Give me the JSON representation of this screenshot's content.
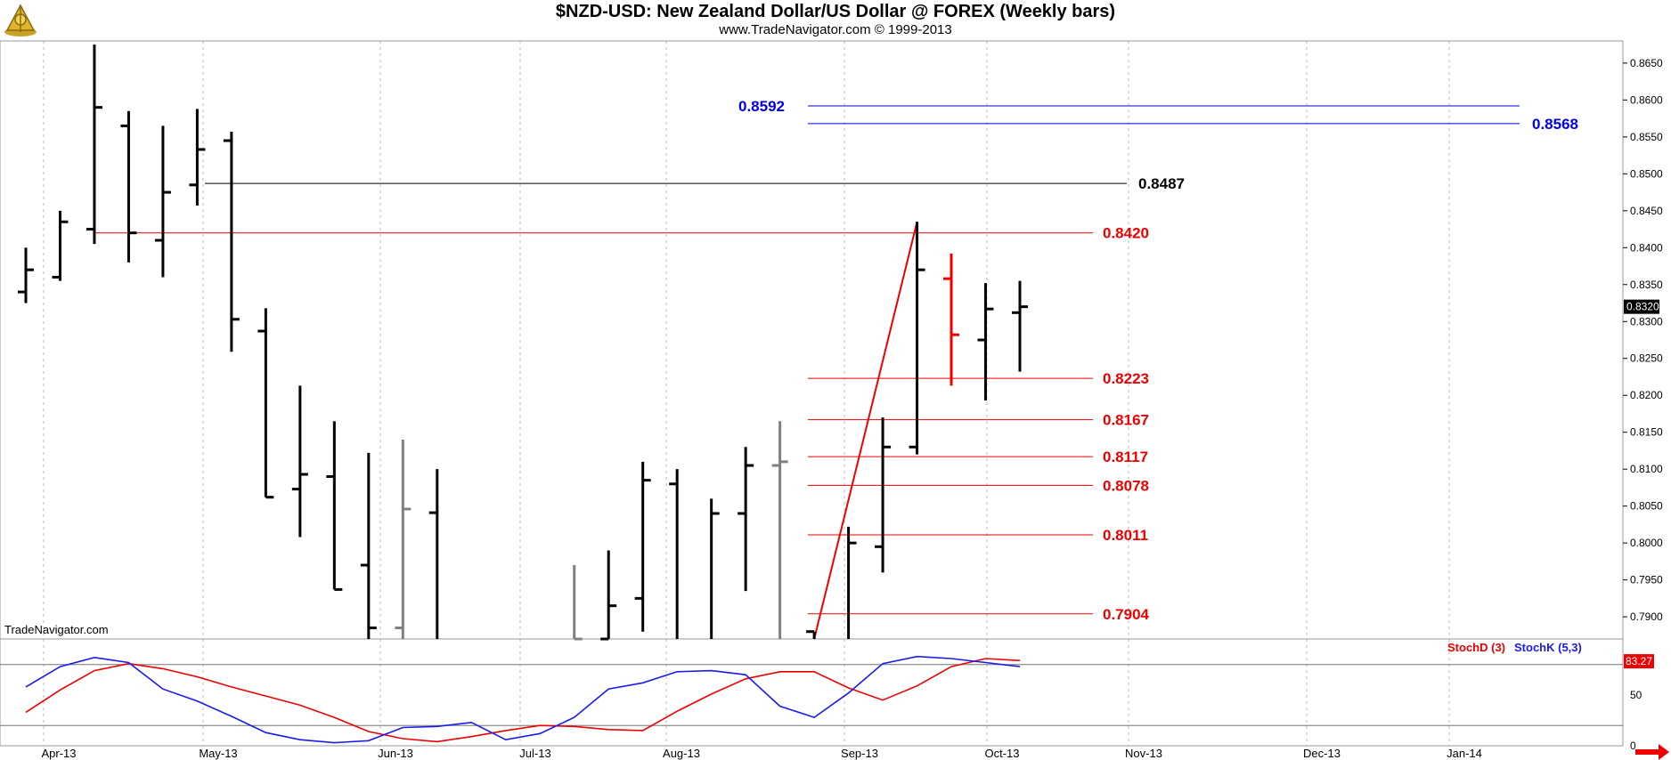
{
  "header": {
    "title": "$NZD-USD:  New Zealand Dollar/US Dollar @ FOREX  (Weekly bars)",
    "subtitle": "www.TradeNavigator.com © 1999-2013"
  },
  "watermark": "TradeNavigator.com",
  "colors": {
    "bar": "#000000",
    "bar_gray": "#808080",
    "bar_red": "#ee0000",
    "stoch_d": "#ee0000",
    "stoch_k": "#1a1aee",
    "fib_red": "#ee0000",
    "fib_blue": "#0000ee",
    "resist_black": "#000000",
    "grid": "#bbbbbb"
  },
  "chart_data": [
    {
      "type": "ohlc",
      "title": "$NZD-USD:  New Zealand Dollar/US Dollar @ FOREX  (Weekly bars)",
      "ylim": [
        0.787,
        0.868
      ],
      "y_ticks": [
        "0.7900",
        "0.7950",
        "0.8000",
        "0.8050",
        "0.8100",
        "0.8150",
        "0.8200",
        "0.8250",
        "0.8300",
        "0.8350",
        "0.8400",
        "0.8450",
        "0.8500",
        "0.8550",
        "0.8600",
        "0.8650"
      ],
      "x_tick_labels": [
        "Apr-13",
        "May-13",
        "Jun-13",
        "Jul-13",
        "Aug-13",
        "Sep-13",
        "Oct-13",
        "Nov-13",
        "Dec-13",
        "Jan-14"
      ],
      "last_price": "0.8320",
      "bars": [
        {
          "date": "2013-03-31",
          "open": 0.834,
          "high": 0.84,
          "low": 0.8325,
          "close": 0.837,
          "color": "black"
        },
        {
          "date": "2013-04-07",
          "open": 0.836,
          "high": 0.845,
          "low": 0.8355,
          "close": 0.8435,
          "color": "black"
        },
        {
          "date": "2013-04-14",
          "open": 0.8425,
          "high": 0.8675,
          "low": 0.8405,
          "close": 0.859,
          "color": "black"
        },
        {
          "date": "2013-04-21",
          "open": 0.8565,
          "high": 0.8585,
          "low": 0.838,
          "close": 0.842,
          "color": "black"
        },
        {
          "date": "2013-04-28",
          "open": 0.841,
          "high": 0.8565,
          "low": 0.836,
          "close": 0.8475,
          "color": "black"
        },
        {
          "date": "2013-05-05",
          "open": 0.8485,
          "high": 0.8588,
          "low": 0.8457,
          "close": 0.8533,
          "color": "black"
        },
        {
          "date": "2013-05-12",
          "open": 0.8545,
          "high": 0.8557,
          "low": 0.8259,
          "close": 0.8303,
          "color": "black"
        },
        {
          "date": "2013-05-19",
          "open": 0.8287,
          "high": 0.8318,
          "low": 0.8062,
          "close": 0.8062,
          "color": "black"
        },
        {
          "date": "2013-05-26",
          "open": 0.8073,
          "high": 0.8213,
          "low": 0.8008,
          "close": 0.8093,
          "color": "black"
        },
        {
          "date": "2013-06-02",
          "open": 0.809,
          "high": 0.8165,
          "low": 0.7937,
          "close": 0.7937,
          "color": "black"
        },
        {
          "date": "2013-06-09",
          "open": 0.797,
          "high": 0.8122,
          "low": 0.782,
          "close": 0.7885,
          "color": "black"
        },
        {
          "date": "2013-06-16",
          "open": 0.7885,
          "high": 0.814,
          "low": 0.782,
          "close": 0.8046,
          "color": "gray"
        },
        {
          "date": "2013-06-23",
          "open": 0.8041,
          "high": 0.81,
          "low": 0.782,
          "close": 0.782,
          "color": "black"
        },
        {
          "date": "2013-07-21",
          "open": 0.784,
          "high": 0.797,
          "low": 0.782,
          "close": 0.787,
          "color": "gray"
        },
        {
          "date": "2013-07-28",
          "open": 0.787,
          "high": 0.799,
          "low": 0.787,
          "close": 0.7915,
          "color": "black"
        },
        {
          "date": "2013-08-04",
          "open": 0.7925,
          "high": 0.811,
          "low": 0.788,
          "close": 0.8085,
          "color": "black"
        },
        {
          "date": "2013-08-11",
          "open": 0.808,
          "high": 0.81,
          "low": 0.782,
          "close": 0.782,
          "color": "black"
        },
        {
          "date": "2013-08-18",
          "open": 0.782,
          "high": 0.806,
          "low": 0.782,
          "close": 0.804,
          "color": "black"
        },
        {
          "date": "2013-08-25",
          "open": 0.804,
          "high": 0.813,
          "low": 0.7935,
          "close": 0.8105,
          "color": "black"
        },
        {
          "date": "2013-09-01",
          "open": 0.8105,
          "high": 0.8165,
          "low": 0.782,
          "close": 0.811,
          "color": "gray"
        },
        {
          "date": "2013-09-08",
          "open": 0.788,
          "high": 0.788,
          "low": 0.782,
          "close": 0.782,
          "color": "black"
        },
        {
          "date": "2013-09-15",
          "open": 0.786,
          "high": 0.8022,
          "low": 0.785,
          "close": 0.8,
          "color": "black"
        },
        {
          "date": "2013-09-22",
          "open": 0.7995,
          "high": 0.817,
          "low": 0.796,
          "close": 0.813,
          "color": "black"
        },
        {
          "date": "2013-09-29",
          "open": 0.813,
          "high": 0.8435,
          "low": 0.812,
          "close": 0.837,
          "color": "black"
        },
        {
          "date": "2013-10-06",
          "open": 0.8358,
          "high": 0.8392,
          "low": 0.8213,
          "close": 0.8282,
          "color": "red"
        },
        {
          "date": "2013-10-13",
          "open": 0.8275,
          "high": 0.8352,
          "low": 0.8193,
          "close": 0.8317,
          "color": "black"
        },
        {
          "date": "2013-10-20",
          "open": 0.8312,
          "high": 0.8355,
          "low": 0.8232,
          "close": 0.832,
          "color": "black"
        }
      ],
      "levels": [
        {
          "label": "0.8592",
          "value": 0.8592,
          "color": "blue"
        },
        {
          "label": "0.8568",
          "value": 0.8568,
          "color": "blue"
        },
        {
          "label": "0.8487",
          "value": 0.8487,
          "color": "black"
        },
        {
          "label": "0.8420",
          "value": 0.842,
          "color": "red"
        },
        {
          "label": "0.8223",
          "value": 0.8223,
          "color": "red"
        },
        {
          "label": "0.8167",
          "value": 0.8167,
          "color": "red"
        },
        {
          "label": "0.8117",
          "value": 0.8117,
          "color": "red"
        },
        {
          "label": "0.8078",
          "value": 0.8078,
          "color": "red"
        },
        {
          "label": "0.8011",
          "value": 0.8011,
          "color": "red"
        },
        {
          "label": "0.7904",
          "value": 0.7904,
          "color": "red"
        }
      ],
      "trendline": {
        "from": {
          "date": "2013-09-08",
          "y": 0.787
        },
        "to": {
          "date": "2013-09-29",
          "y": 0.8435
        }
      }
    },
    {
      "type": "line",
      "legend": [
        "StochD (3)",
        "StochK (5,3)"
      ],
      "ylim": [
        0,
        100
      ],
      "y_ticks": [
        "0",
        "50"
      ],
      "reference_lines": [
        20,
        80
      ],
      "last_value": "83.27",
      "x": [
        "2013-03-31",
        "2013-04-07",
        "2013-04-14",
        "2013-04-21",
        "2013-04-28",
        "2013-05-05",
        "2013-05-12",
        "2013-05-19",
        "2013-05-26",
        "2013-06-02",
        "2013-06-09",
        "2013-06-16",
        "2013-06-23",
        "2013-06-30",
        "2013-07-07",
        "2013-07-14",
        "2013-07-21",
        "2013-07-28",
        "2013-08-04",
        "2013-08-11",
        "2013-08-18",
        "2013-08-25",
        "2013-09-01",
        "2013-09-08",
        "2013-09-15",
        "2013-09-22",
        "2013-09-29",
        "2013-10-06",
        "2013-10-13",
        "2013-10-20"
      ],
      "series": [
        {
          "name": "StochD (3)",
          "color": "red",
          "values": [
            33,
            55,
            74,
            81,
            76,
            68,
            58,
            49,
            40,
            28,
            14,
            7,
            4,
            9,
            15,
            20,
            19,
            16,
            15,
            34,
            51,
            66,
            73,
            73,
            57,
            45,
            59,
            78,
            86,
            84
          ]
        },
        {
          "name": "StochK (5,3)",
          "color": "blue",
          "values": [
            58,
            78,
            87,
            82,
            56,
            44,
            29,
            13,
            6,
            3,
            5,
            18,
            19,
            23,
            6,
            12,
            28,
            56,
            62,
            73,
            74,
            70,
            39,
            28,
            52,
            81,
            88,
            86,
            82,
            78
          ]
        }
      ]
    }
  ]
}
